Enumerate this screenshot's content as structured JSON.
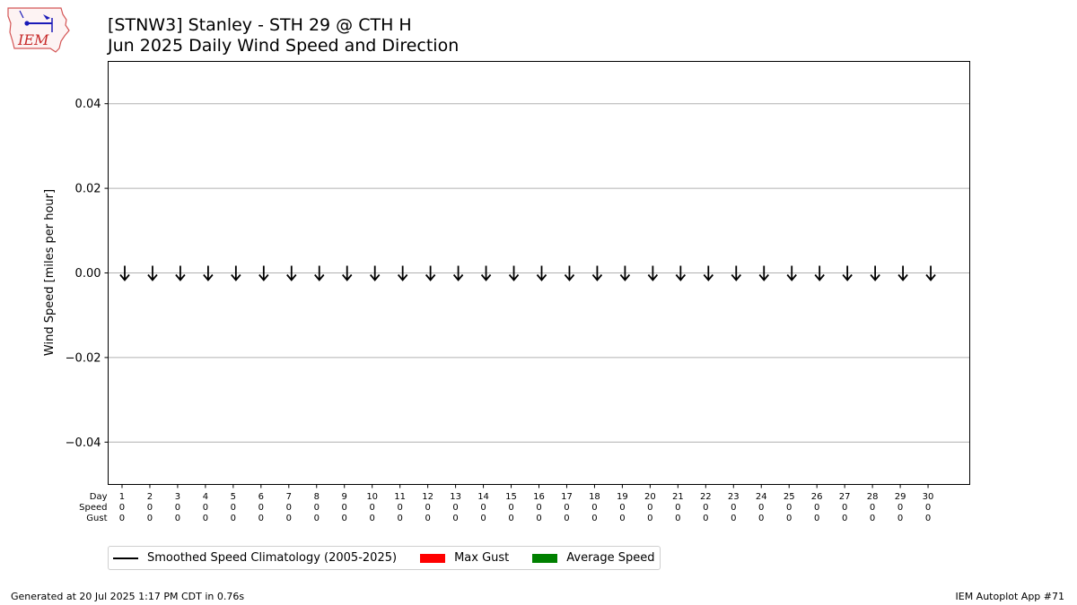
{
  "header": {
    "title": "[STNW3] Stanley - STH 29 @ CTH H",
    "subtitle": "Jun 2025 Daily Wind Speed and Direction",
    "logo_text": "IEM"
  },
  "footer": {
    "generated": "Generated at 20 Jul 2025 1:17 PM CDT in 0.76s",
    "app": "IEM Autoplot App #71"
  },
  "legend": {
    "items": [
      {
        "label": "Smoothed Speed Climatology (2005-2025)",
        "color": "#000000",
        "kind": "line"
      },
      {
        "label": "Max Gust",
        "color": "#ff0000",
        "kind": "patch"
      },
      {
        "label": "Average Speed",
        "color": "#008000",
        "kind": "patch"
      }
    ]
  },
  "chart_data": {
    "type": "bar",
    "ylabel": "Wind Speed [miles per hour]",
    "ylim": [
      -0.05,
      0.05
    ],
    "yticks": [
      0.04,
      0.02,
      0.0,
      -0.02,
      -0.04
    ],
    "ytick_labels": [
      "0.04",
      "0.02",
      "0.00",
      "−0.02",
      "−0.04"
    ],
    "xlim": [
      0.5,
      31.5
    ],
    "grid": "y",
    "row_labels": [
      "Day",
      "Speed",
      "Gust"
    ],
    "days": [
      1,
      2,
      3,
      4,
      5,
      6,
      7,
      8,
      9,
      10,
      11,
      12,
      13,
      14,
      15,
      16,
      17,
      18,
      19,
      20,
      21,
      22,
      23,
      24,
      25,
      26,
      27,
      28,
      29,
      30
    ],
    "speed": [
      0,
      0,
      0,
      0,
      0,
      0,
      0,
      0,
      0,
      0,
      0,
      0,
      0,
      0,
      0,
      0,
      0,
      0,
      0,
      0,
      0,
      0,
      0,
      0,
      0,
      0,
      0,
      0,
      0,
      0
    ],
    "gust": [
      0,
      0,
      0,
      0,
      0,
      0,
      0,
      0,
      0,
      0,
      0,
      0,
      0,
      0,
      0,
      0,
      0,
      0,
      0,
      0,
      0,
      0,
      0,
      0,
      0,
      0,
      0,
      0,
      0,
      0
    ],
    "direction_arrow": "down",
    "series": [
      {
        "name": "Smoothed Speed Climatology (2005-2025)",
        "values": []
      },
      {
        "name": "Max Gust",
        "values": [
          0,
          0,
          0,
          0,
          0,
          0,
          0,
          0,
          0,
          0,
          0,
          0,
          0,
          0,
          0,
          0,
          0,
          0,
          0,
          0,
          0,
          0,
          0,
          0,
          0,
          0,
          0,
          0,
          0,
          0
        ]
      },
      {
        "name": "Average Speed",
        "values": [
          0,
          0,
          0,
          0,
          0,
          0,
          0,
          0,
          0,
          0,
          0,
          0,
          0,
          0,
          0,
          0,
          0,
          0,
          0,
          0,
          0,
          0,
          0,
          0,
          0,
          0,
          0,
          0,
          0,
          0
        ]
      }
    ]
  }
}
